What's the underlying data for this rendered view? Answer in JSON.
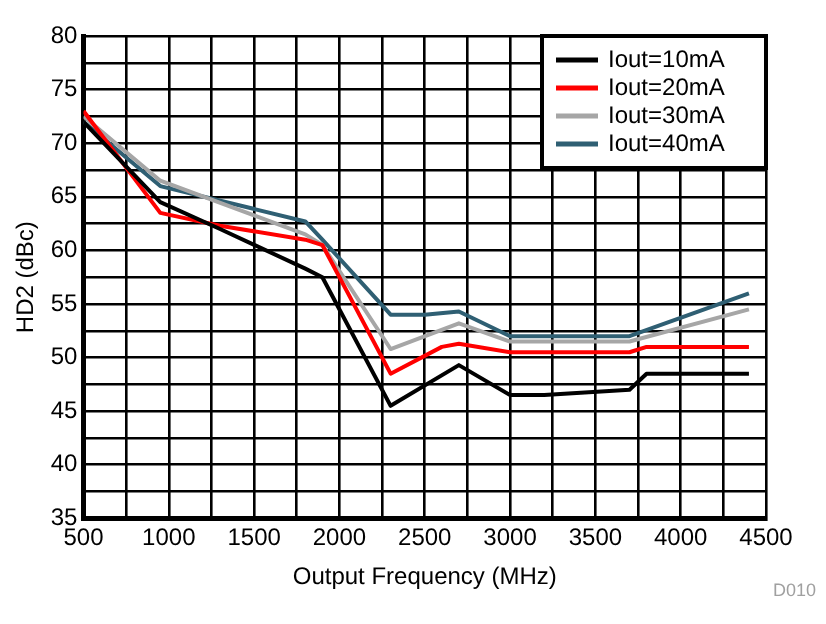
{
  "chart_data": {
    "type": "line",
    "xlabel": "Output Frequency (MHz)",
    "ylabel": "HD2 (dBc)",
    "xlim": [
      500,
      4500
    ],
    "ylim": [
      35,
      80
    ],
    "xticks": [
      500,
      {
        "value": 750,
        "label": null
      },
      1000,
      {
        "value": 1250,
        "label": null
      },
      1500,
      {
        "value": 1750,
        "label": null
      },
      2000,
      {
        "value": 2250,
        "label": null
      },
      2500,
      {
        "value": 2750,
        "label": null
      },
      3000,
      {
        "value": 3250,
        "label": null
      },
      3500,
      {
        "value": 3750,
        "label": null
      },
      4000,
      {
        "value": 4250,
        "label": null
      },
      4500
    ],
    "yticks": [
      35,
      {
        "value": 37.5,
        "label": null
      },
      40,
      {
        "value": 42.5,
        "label": null
      },
      45,
      {
        "value": 47.5,
        "label": null
      },
      50,
      {
        "value": 52.5,
        "label": null
      },
      55,
      {
        "value": 57.5,
        "label": null
      },
      60,
      {
        "value": 62.5,
        "label": null
      },
      65,
      {
        "value": 67.5,
        "label": null
      },
      70,
      {
        "value": 72.5,
        "label": null
      },
      75,
      {
        "value": 77.5,
        "label": null
      },
      80
    ],
    "grid": true,
    "legend": "top right",
    "annotations": [
      "D010"
    ],
    "series": [
      {
        "name": "Iout=10mA",
        "color": "#000000",
        "x": [
          500,
          950,
          1300,
          1800,
          1900,
          2300,
          2700,
          3000,
          3200,
          3700,
          3800,
          4400
        ],
        "values": [
          72,
          64.5,
          62,
          58.3,
          57.5,
          45.5,
          49.3,
          46.5,
          46.5,
          47,
          48.5,
          48.5
        ]
      },
      {
        "name": "Iout=20mA",
        "color": "#ff0000",
        "x": [
          500,
          950,
          1300,
          1800,
          1900,
          2300,
          2600,
          2700,
          3000,
          3700,
          3800,
          4400
        ],
        "values": [
          73,
          63.5,
          62.3,
          61,
          60.5,
          48.5,
          51,
          51.3,
          50.5,
          50.5,
          51,
          51
        ]
      },
      {
        "name": "Iout=30mA",
        "color": "#a6a6a6",
        "x": [
          500,
          950,
          1800,
          1900,
          2300,
          2700,
          3000,
          3700,
          4400
        ],
        "values": [
          72.5,
          66.5,
          61.5,
          60.5,
          50.8,
          53.2,
          51.5,
          51.5,
          54.5
        ]
      },
      {
        "name": "Iout=40mA",
        "color": "#2f5f73",
        "x": [
          500,
          950,
          1800,
          1900,
          2300,
          2500,
          2700,
          3000,
          3700,
          4400
        ],
        "values": [
          72,
          66,
          62.7,
          61,
          54,
          54,
          54.3,
          52,
          52,
          56
        ]
      }
    ]
  }
}
